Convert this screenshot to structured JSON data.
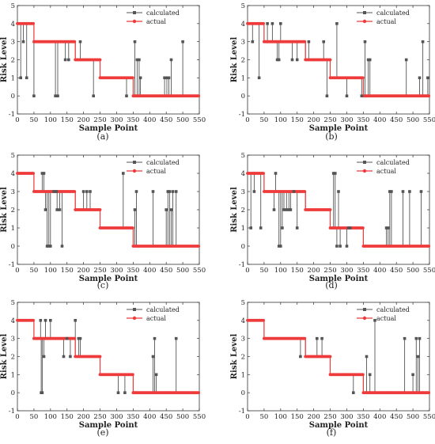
{
  "chart_data": [
    {
      "type": "line",
      "panel_label": "(a)",
      "xlabel": "Sample Point",
      "ylabel": "Risk Level",
      "xlim": [
        0,
        550
      ],
      "ylim": [
        -1,
        5
      ],
      "xticks": [
        0,
        50,
        100,
        150,
        200,
        250,
        300,
        350,
        400,
        450,
        500,
        550
      ],
      "yticks": [
        -1,
        0,
        1,
        2,
        3,
        4,
        5
      ],
      "legend": {
        "placement": "top-right",
        "entries": [
          "calculated",
          "actual"
        ]
      },
      "actual": [
        [
          0,
          50,
          4
        ],
        [
          50,
          175,
          3
        ],
        [
          175,
          250,
          2
        ],
        [
          250,
          350,
          1
        ],
        [
          350,
          550,
          0
        ]
      ],
      "calculated_deviations": [
        [
          10,
          1
        ],
        [
          18,
          3
        ],
        [
          28,
          1
        ],
        [
          50,
          0
        ],
        [
          115,
          0
        ],
        [
          122,
          0
        ],
        [
          145,
          2
        ],
        [
          155,
          2
        ],
        [
          190,
          3
        ],
        [
          230,
          0
        ],
        [
          330,
          0
        ],
        [
          355,
          3
        ],
        [
          362,
          2
        ],
        [
          368,
          2
        ],
        [
          372,
          1
        ],
        [
          445,
          1
        ],
        [
          452,
          1
        ],
        [
          458,
          1
        ],
        [
          465,
          2
        ],
        [
          500,
          3
        ]
      ]
    },
    {
      "type": "line",
      "panel_label": "(b)",
      "xlabel": "Sample Point",
      "ylabel": "Risk Level",
      "xlim": [
        0,
        550
      ],
      "ylim": [
        -1,
        5
      ],
      "xticks": [
        0,
        50,
        100,
        150,
        200,
        250,
        300,
        350,
        400,
        450,
        500,
        550
      ],
      "yticks": [
        -1,
        0,
        1,
        2,
        3,
        4,
        5
      ],
      "legend": {
        "placement": "top-right",
        "entries": [
          "calculated",
          "actual"
        ]
      },
      "actual": [
        [
          0,
          50,
          4
        ],
        [
          50,
          175,
          3
        ],
        [
          175,
          250,
          2
        ],
        [
          250,
          350,
          1
        ],
        [
          350,
          550,
          0
        ]
      ],
      "calculated_deviations": [
        [
          15,
          3
        ],
        [
          35,
          1
        ],
        [
          60,
          4
        ],
        [
          75,
          4
        ],
        [
          90,
          2
        ],
        [
          95,
          2
        ],
        [
          100,
          4
        ],
        [
          135,
          2
        ],
        [
          150,
          2
        ],
        [
          185,
          3
        ],
        [
          230,
          3
        ],
        [
          240,
          0
        ],
        [
          270,
          4
        ],
        [
          300,
          0
        ],
        [
          345,
          0
        ],
        [
          355,
          3
        ],
        [
          365,
          2
        ],
        [
          370,
          2
        ],
        [
          480,
          2
        ],
        [
          520,
          1
        ],
        [
          530,
          3
        ],
        [
          545,
          1
        ]
      ]
    },
    {
      "type": "line",
      "panel_label": "(c)",
      "xlabel": "Sample Point",
      "ylabel": "Risk Level",
      "xlim": [
        0,
        550
      ],
      "ylim": [
        -1,
        5
      ],
      "xticks": [
        0,
        50,
        100,
        150,
        200,
        250,
        300,
        350,
        400,
        450,
        500,
        550
      ],
      "yticks": [
        -1,
        0,
        1,
        2,
        3,
        4,
        5
      ],
      "legend": {
        "placement": "top-right",
        "entries": [
          "calculated",
          "actual"
        ]
      },
      "actual": [
        [
          0,
          50,
          4
        ],
        [
          50,
          175,
          3
        ],
        [
          175,
          250,
          2
        ],
        [
          250,
          350,
          1
        ],
        [
          350,
          550,
          0
        ]
      ],
      "calculated_deviations": [
        [
          75,
          4
        ],
        [
          80,
          4
        ],
        [
          85,
          2
        ],
        [
          90,
          0
        ],
        [
          95,
          0
        ],
        [
          100,
          0
        ],
        [
          110,
          3
        ],
        [
          118,
          3
        ],
        [
          120,
          2
        ],
        [
          128,
          2
        ],
        [
          135,
          0
        ],
        [
          200,
          3
        ],
        [
          210,
          3
        ],
        [
          220,
          3
        ],
        [
          320,
          4
        ],
        [
          355,
          2
        ],
        [
          360,
          3
        ],
        [
          410,
          3
        ],
        [
          450,
          2
        ],
        [
          455,
          3
        ],
        [
          460,
          3
        ],
        [
          465,
          2
        ],
        [
          470,
          3
        ],
        [
          480,
          3
        ]
      ]
    },
    {
      "type": "line",
      "panel_label": "(d)",
      "xlabel": "Sample Point",
      "ylabel": "Risk Level",
      "xlim": [
        0,
        550
      ],
      "ylim": [
        -1,
        5
      ],
      "xticks": [
        0,
        50,
        100,
        150,
        200,
        250,
        300,
        350,
        400,
        450,
        500,
        550
      ],
      "yticks": [
        -1,
        0,
        1,
        2,
        3,
        4,
        5
      ],
      "legend": {
        "placement": "top-right",
        "entries": [
          "calculated",
          "actual"
        ]
      },
      "actual": [
        [
          0,
          50,
          4
        ],
        [
          50,
          175,
          3
        ],
        [
          175,
          250,
          2
        ],
        [
          250,
          350,
          1
        ],
        [
          350,
          550,
          0
        ]
      ],
      "calculated_deviations": [
        [
          10,
          1
        ],
        [
          20,
          3
        ],
        [
          40,
          1
        ],
        [
          80,
          2
        ],
        [
          85,
          4
        ],
        [
          95,
          0
        ],
        [
          100,
          0
        ],
        [
          105,
          1
        ],
        [
          110,
          2
        ],
        [
          118,
          2
        ],
        [
          125,
          2
        ],
        [
          130,
          2
        ],
        [
          140,
          3
        ],
        [
          150,
          1
        ],
        [
          260,
          4
        ],
        [
          265,
          4
        ],
        [
          270,
          0
        ],
        [
          275,
          3
        ],
        [
          280,
          0
        ],
        [
          300,
          0
        ],
        [
          305,
          1
        ],
        [
          310,
          1
        ],
        [
          420,
          1
        ],
        [
          425,
          1
        ],
        [
          430,
          3
        ],
        [
          435,
          3
        ],
        [
          470,
          3
        ],
        [
          490,
          3
        ],
        [
          525,
          3
        ]
      ]
    },
    {
      "type": "line",
      "panel_label": "(e)",
      "xlabel": "Sample Point",
      "ylabel": "Risk Level",
      "xlim": [
        0,
        550
      ],
      "ylim": [
        -1,
        5
      ],
      "xticks": [
        0,
        50,
        100,
        150,
        200,
        250,
        300,
        350,
        400,
        450,
        500,
        550
      ],
      "yticks": [
        -1,
        0,
        1,
        2,
        3,
        4,
        5
      ],
      "legend": {
        "placement": "top-right",
        "entries": [
          "calculated",
          "actual"
        ]
      },
      "actual": [
        [
          0,
          50,
          4
        ],
        [
          50,
          175,
          3
        ],
        [
          175,
          250,
          2
        ],
        [
          250,
          350,
          1
        ],
        [
          350,
          550,
          0
        ]
      ],
      "calculated_deviations": [
        [
          70,
          4
        ],
        [
          72,
          0
        ],
        [
          75,
          0
        ],
        [
          80,
          2
        ],
        [
          85,
          4
        ],
        [
          100,
          4
        ],
        [
          140,
          2
        ],
        [
          150,
          3
        ],
        [
          160,
          2
        ],
        [
          175,
          4
        ],
        [
          185,
          3
        ],
        [
          190,
          3
        ],
        [
          305,
          0
        ],
        [
          325,
          0
        ],
        [
          410,
          2
        ],
        [
          415,
          3
        ],
        [
          420,
          1
        ],
        [
          480,
          3
        ]
      ]
    },
    {
      "type": "line",
      "panel_label": "(f)",
      "xlabel": "Sample Point",
      "ylabel": "Risk Level",
      "xlim": [
        0,
        550
      ],
      "ylim": [
        -1,
        5
      ],
      "xticks": [
        0,
        50,
        100,
        150,
        200,
        250,
        300,
        350,
        400,
        450,
        500,
        550
      ],
      "yticks": [
        -1,
        0,
        1,
        2,
        3,
        4,
        5
      ],
      "legend": {
        "placement": "top-right",
        "entries": [
          "calculated",
          "actual"
        ]
      },
      "actual": [
        [
          0,
          50,
          4
        ],
        [
          50,
          175,
          3
        ],
        [
          175,
          250,
          2
        ],
        [
          250,
          350,
          1
        ],
        [
          350,
          550,
          0
        ]
      ],
      "calculated_deviations": [
        [
          160,
          2
        ],
        [
          210,
          3
        ],
        [
          225,
          3
        ],
        [
          320,
          0
        ],
        [
          360,
          2
        ],
        [
          370,
          1
        ],
        [
          385,
          4
        ],
        [
          475,
          3
        ],
        [
          500,
          1
        ],
        [
          510,
          3
        ],
        [
          515,
          2
        ],
        [
          520,
          3
        ]
      ]
    }
  ]
}
